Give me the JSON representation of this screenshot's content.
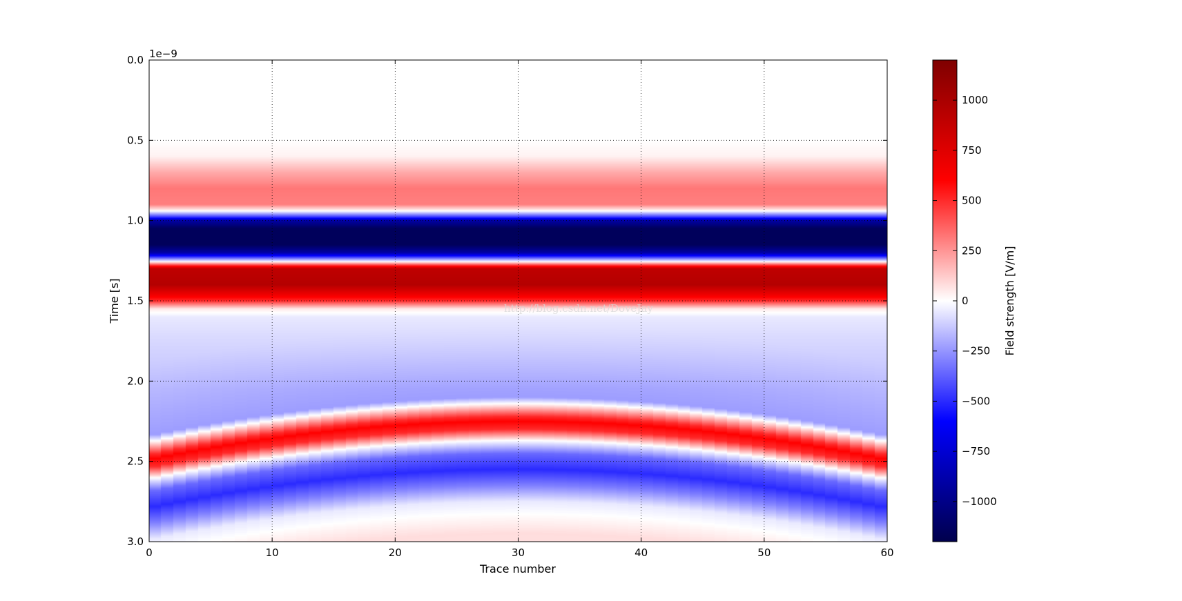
{
  "chart_data": {
    "type": "heatmap",
    "title": "",
    "xlabel": "Trace number",
    "ylabel": "Time [s]",
    "y_offset_text": "1e−9",
    "xlim": [
      0,
      60
    ],
    "ylim": [
      3.0,
      0.0
    ],
    "y_inverted": true,
    "x_ticks": [
      0,
      10,
      20,
      30,
      40,
      50,
      60
    ],
    "x_tick_labels": [
      "0",
      "10",
      "20",
      "30",
      "40",
      "50",
      "60"
    ],
    "y_ticks": [
      0.0,
      0.5,
      1.0,
      1.5,
      2.0,
      2.5,
      3.0
    ],
    "y_tick_labels": [
      "0.0",
      "0.5",
      "1.0",
      "1.5",
      "2.0",
      "2.5",
      "3.0"
    ],
    "grid": true,
    "colormap": "seismic",
    "colormap_colors": [
      "#00004c",
      "#0000ff",
      "#ffffff",
      "#ff0000",
      "#7f0000"
    ],
    "colorbar": {
      "label": "Field strength [V/m]",
      "vmin": -1200,
      "vmax": 1200,
      "ticks": [
        1000,
        750,
        500,
        250,
        0,
        -250,
        -500,
        -750,
        -1000
      ],
      "tick_labels": [
        "1000",
        "750",
        "500",
        "250",
        "0",
        "−250",
        "−500",
        "−750",
        "−1000"
      ]
    },
    "n_traces": 60,
    "t_samples": [
      0.0,
      0.5,
      0.6,
      0.7,
      0.8,
      0.9,
      0.94,
      0.98,
      1.0,
      1.05,
      1.15,
      1.2,
      1.25,
      1.3,
      1.4,
      1.5,
      1.55,
      1.6,
      1.8,
      2.0,
      2.05
    ],
    "direct_wave_values": [
      0,
      0,
      30,
      200,
      320,
      300,
      0,
      -500,
      -900,
      -1150,
      -1150,
      -900,
      -100,
      900,
      950,
      500,
      50,
      -50,
      -80,
      -120,
      -130
    ],
    "reflection": {
      "apex_trace": 30,
      "apex_time": 2.25,
      "edge_time": 2.49,
      "pulse_offsets": [
        -0.6,
        -0.15,
        -0.11,
        -0.03,
        0.0,
        0.05,
        0.12,
        0.2,
        0.3,
        0.4,
        0.5,
        0.7,
        0.9
      ],
      "pulse_values": [
        -130,
        -230,
        0,
        500,
        600,
        500,
        0,
        -350,
        -500,
        -300,
        -50,
        80,
        60
      ]
    },
    "watermark": "http://blog.csdn.net/DoveJay"
  }
}
